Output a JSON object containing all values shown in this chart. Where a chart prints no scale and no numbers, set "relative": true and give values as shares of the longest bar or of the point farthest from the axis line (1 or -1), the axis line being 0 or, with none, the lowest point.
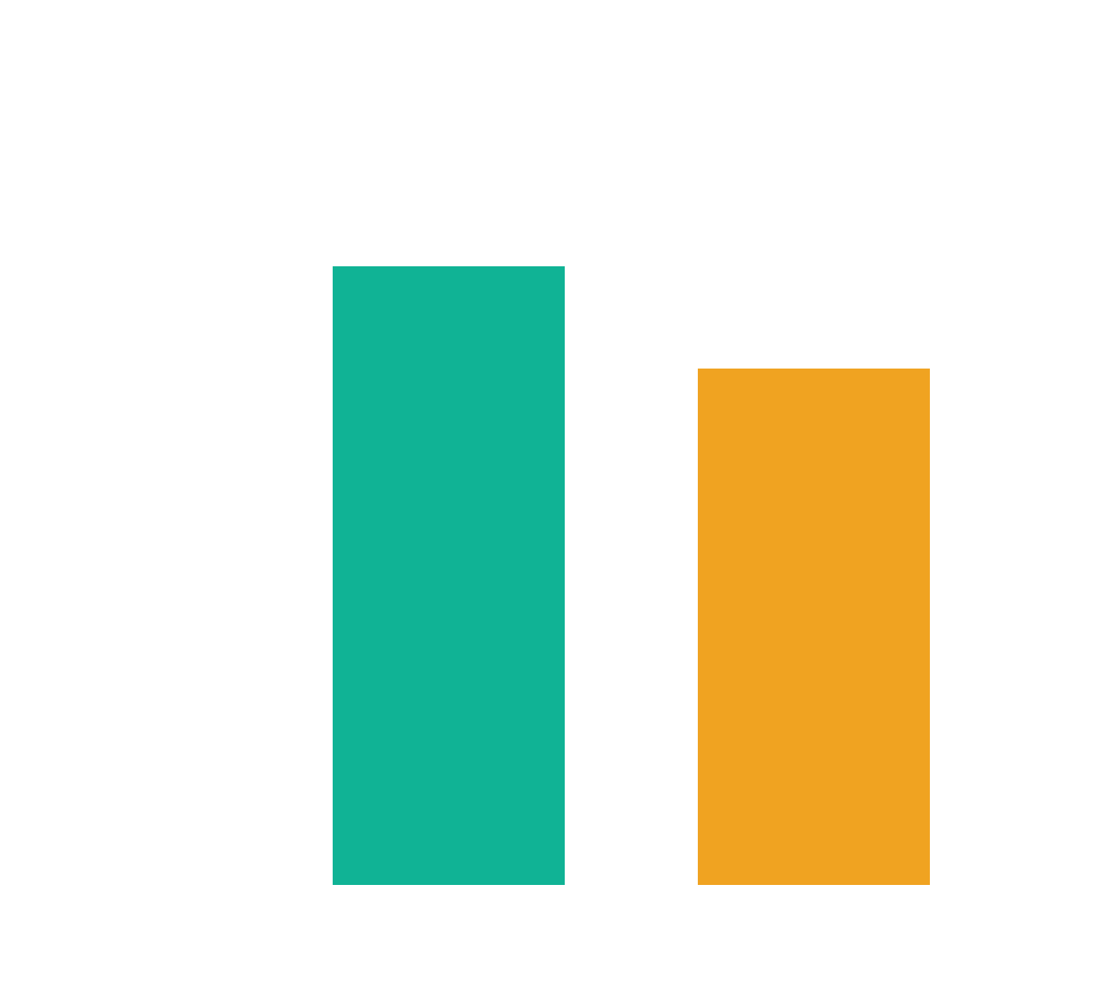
{
  "chart_data": {
    "type": "bar",
    "relative": true,
    "categories": [
      null,
      null
    ],
    "values": [
      1,
      0.835
    ],
    "colors": [
      "#10b395",
      "#f0a321"
    ]
  }
}
